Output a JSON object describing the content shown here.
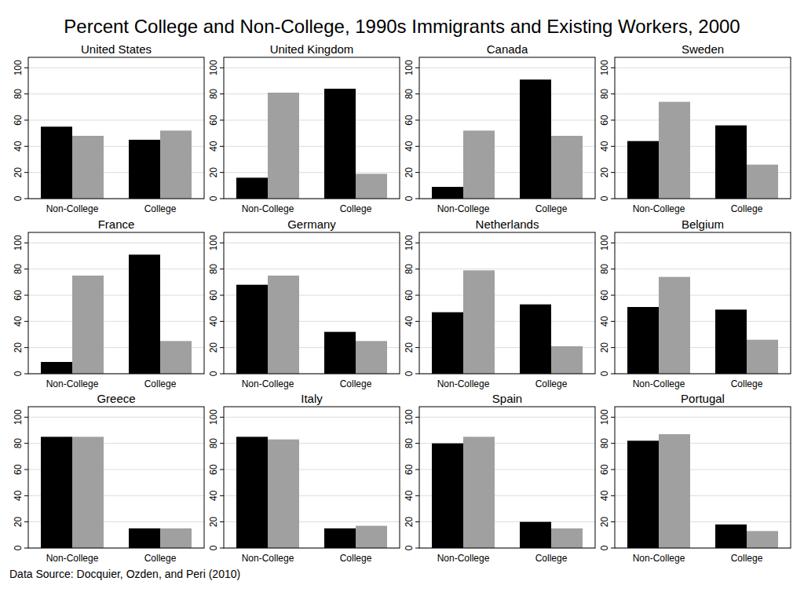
{
  "title": "Percent College and Non-College, 1990s Immigrants and Existing Workers, 2000",
  "source": "Data Source: Docquier, Ozden, and Peri (2010)",
  "chart_data": [
    {
      "type": "bar",
      "title": "United States",
      "categories": [
        "Non-College",
        "College"
      ],
      "series": [
        {
          "color": "#000000",
          "values": [
            55,
            45
          ]
        },
        {
          "color": "#a0a0a0",
          "values": [
            48,
            52
          ]
        }
      ],
      "ylim": [
        0,
        108
      ],
      "yticks": [
        0,
        20,
        40,
        60,
        80,
        100
      ],
      "grid": true
    },
    {
      "type": "bar",
      "title": "United Kingdom",
      "categories": [
        "Non-College",
        "College"
      ],
      "series": [
        {
          "color": "#000000",
          "values": [
            16,
            84
          ]
        },
        {
          "color": "#a0a0a0",
          "values": [
            81,
            19
          ]
        }
      ],
      "ylim": [
        0,
        108
      ],
      "yticks": [
        0,
        20,
        40,
        60,
        80,
        100
      ],
      "grid": true
    },
    {
      "type": "bar",
      "title": "Canada",
      "categories": [
        "Non-College",
        "College"
      ],
      "series": [
        {
          "color": "#000000",
          "values": [
            9,
            91
          ]
        },
        {
          "color": "#a0a0a0",
          "values": [
            52,
            48
          ]
        }
      ],
      "ylim": [
        0,
        108
      ],
      "yticks": [
        0,
        20,
        40,
        60,
        80,
        100
      ],
      "grid": true
    },
    {
      "type": "bar",
      "title": "Sweden",
      "categories": [
        "Non-College",
        "College"
      ],
      "series": [
        {
          "color": "#000000",
          "values": [
            44,
            56
          ]
        },
        {
          "color": "#a0a0a0",
          "values": [
            74,
            26
          ]
        }
      ],
      "ylim": [
        0,
        108
      ],
      "yticks": [
        0,
        20,
        40,
        60,
        80,
        100
      ],
      "grid": true
    },
    {
      "type": "bar",
      "title": "France",
      "categories": [
        "Non-College",
        "College"
      ],
      "series": [
        {
          "color": "#000000",
          "values": [
            9,
            91
          ]
        },
        {
          "color": "#a0a0a0",
          "values": [
            75,
            25
          ]
        }
      ],
      "ylim": [
        0,
        108
      ],
      "yticks": [
        0,
        20,
        40,
        60,
        80,
        100
      ],
      "grid": true
    },
    {
      "type": "bar",
      "title": "Germany",
      "categories": [
        "Non-College",
        "College"
      ],
      "series": [
        {
          "color": "#000000",
          "values": [
            68,
            32
          ]
        },
        {
          "color": "#a0a0a0",
          "values": [
            75,
            25
          ]
        }
      ],
      "ylim": [
        0,
        108
      ],
      "yticks": [
        0,
        20,
        40,
        60,
        80,
        100
      ],
      "grid": true
    },
    {
      "type": "bar",
      "title": "Netherlands",
      "categories": [
        "Non-College",
        "College"
      ],
      "series": [
        {
          "color": "#000000",
          "values": [
            47,
            53
          ]
        },
        {
          "color": "#a0a0a0",
          "values": [
            79,
            21
          ]
        }
      ],
      "ylim": [
        0,
        108
      ],
      "yticks": [
        0,
        20,
        40,
        60,
        80,
        100
      ],
      "grid": true
    },
    {
      "type": "bar",
      "title": "Belgium",
      "categories": [
        "Non-College",
        "College"
      ],
      "series": [
        {
          "color": "#000000",
          "values": [
            51,
            49
          ]
        },
        {
          "color": "#a0a0a0",
          "values": [
            74,
            26
          ]
        }
      ],
      "ylim": [
        0,
        108
      ],
      "yticks": [
        0,
        20,
        40,
        60,
        80,
        100
      ],
      "grid": true
    },
    {
      "type": "bar",
      "title": "Greece",
      "categories": [
        "Non-College",
        "College"
      ],
      "series": [
        {
          "color": "#000000",
          "values": [
            85,
            15
          ]
        },
        {
          "color": "#a0a0a0",
          "values": [
            85,
            15
          ]
        }
      ],
      "ylim": [
        0,
        108
      ],
      "yticks": [
        0,
        20,
        40,
        60,
        80,
        100
      ],
      "grid": true
    },
    {
      "type": "bar",
      "title": "Italy",
      "categories": [
        "Non-College",
        "College"
      ],
      "series": [
        {
          "color": "#000000",
          "values": [
            85,
            15
          ]
        },
        {
          "color": "#a0a0a0",
          "values": [
            83,
            17
          ]
        }
      ],
      "ylim": [
        0,
        108
      ],
      "yticks": [
        0,
        20,
        40,
        60,
        80,
        100
      ],
      "grid": true
    },
    {
      "type": "bar",
      "title": "Spain",
      "categories": [
        "Non-College",
        "College"
      ],
      "series": [
        {
          "color": "#000000",
          "values": [
            80,
            20
          ]
        },
        {
          "color": "#a0a0a0",
          "values": [
            85,
            15
          ]
        }
      ],
      "ylim": [
        0,
        108
      ],
      "yticks": [
        0,
        20,
        40,
        60,
        80,
        100
      ],
      "grid": true
    },
    {
      "type": "bar",
      "title": "Portugal",
      "categories": [
        "Non-College",
        "College"
      ],
      "series": [
        {
          "color": "#000000",
          "values": [
            82,
            18
          ]
        },
        {
          "color": "#a0a0a0",
          "values": [
            87,
            13
          ]
        }
      ],
      "ylim": [
        0,
        108
      ],
      "yticks": [
        0,
        20,
        40,
        60,
        80,
        100
      ],
      "grid": true
    }
  ]
}
